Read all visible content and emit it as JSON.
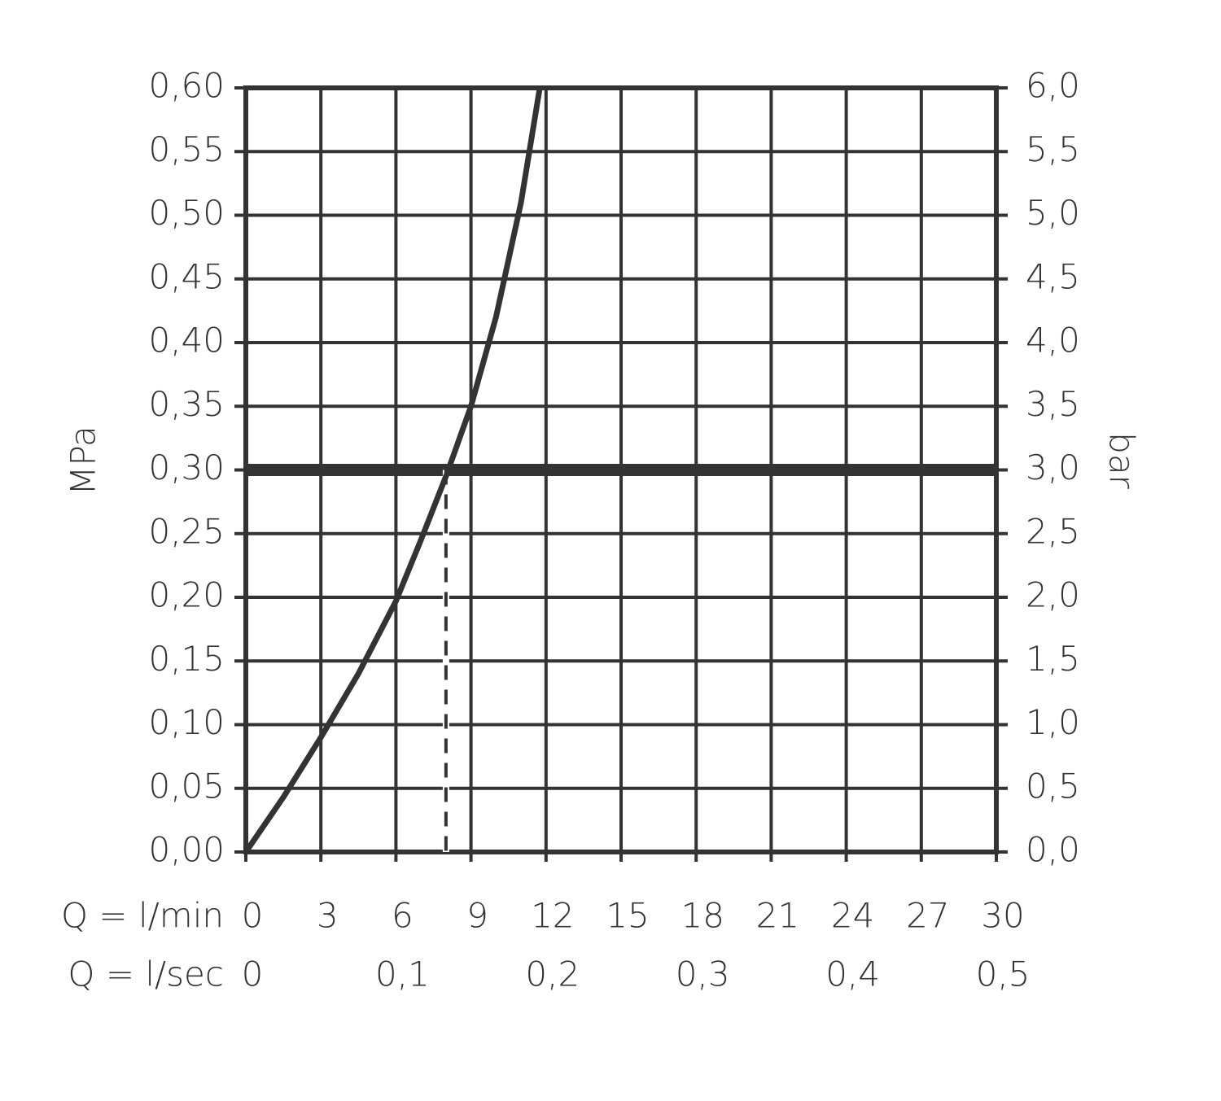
{
  "chart_data": {
    "type": "line",
    "ylabel": "MPa",
    "y2label": "bar",
    "xlabel": "Q = l/min",
    "x2label": "Q = l/sec",
    "x": [
      0,
      1.5,
      3,
      4.5,
      6,
      7,
      8,
      9,
      10,
      11,
      11.75
    ],
    "values": [
      0,
      0.043,
      0.09,
      0.14,
      0.197,
      0.245,
      0.295,
      0.35,
      0.42,
      0.51,
      0.6
    ],
    "color": "#333333",
    "xlim": [
      0,
      30
    ],
    "xticks": [
      0,
      3,
      6,
      9,
      12,
      15,
      18,
      21,
      24,
      27,
      30
    ],
    "x2lim": [
      0,
      0.5
    ],
    "x2ticks": [
      0,
      {
        "value": 0.1,
        "label": "0,1"
      },
      {
        "value": 0.2,
        "label": "0,2"
      },
      {
        "value": 0.3,
        "label": "0,3"
      },
      {
        "value": 0.4,
        "label": "0,4"
      },
      {
        "value": 0.5,
        "label": "0,5"
      }
    ],
    "ylim": [
      0,
      0.6
    ],
    "yticks": [
      {
        "value": 0,
        "label": "0,00"
      },
      {
        "value": 0.05,
        "label": "0,05"
      },
      {
        "value": 0.1,
        "label": "0,10"
      },
      {
        "value": 0.15,
        "label": "0,15"
      },
      {
        "value": 0.2,
        "label": "0,20"
      },
      {
        "value": 0.25,
        "label": "0,25"
      },
      {
        "value": 0.3,
        "label": "0,30"
      },
      {
        "value": 0.35,
        "label": "0,35"
      },
      {
        "value": 0.4,
        "label": "0,40"
      },
      {
        "value": 0.45,
        "label": "0,45"
      },
      {
        "value": 0.5,
        "label": "0,50"
      },
      {
        "value": 0.55,
        "label": "0,55"
      },
      {
        "value": 0.6,
        "label": "0,60"
      }
    ],
    "y2lim": [
      0,
      6
    ],
    "y2ticks": [
      {
        "value": 0,
        "label": "0,0"
      },
      {
        "value": 0.5,
        "label": "0,5"
      },
      {
        "value": 1,
        "label": "1,0"
      },
      {
        "value": 1.5,
        "label": "1,5"
      },
      {
        "value": 2,
        "label": "2,0"
      },
      {
        "value": 2.5,
        "label": "2,5"
      },
      {
        "value": 3,
        "label": "3,0"
      },
      {
        "value": 3.5,
        "label": "3,5"
      },
      {
        "value": 4,
        "label": "4,0"
      },
      {
        "value": 4.5,
        "label": "4,5"
      },
      {
        "value": 5,
        "label": "5,0"
      },
      {
        "value": 5.5,
        "label": "5,5"
      },
      {
        "value": 6,
        "label": "6,0"
      }
    ],
    "hline": 0.3,
    "vline": 8,
    "grid": true
  }
}
